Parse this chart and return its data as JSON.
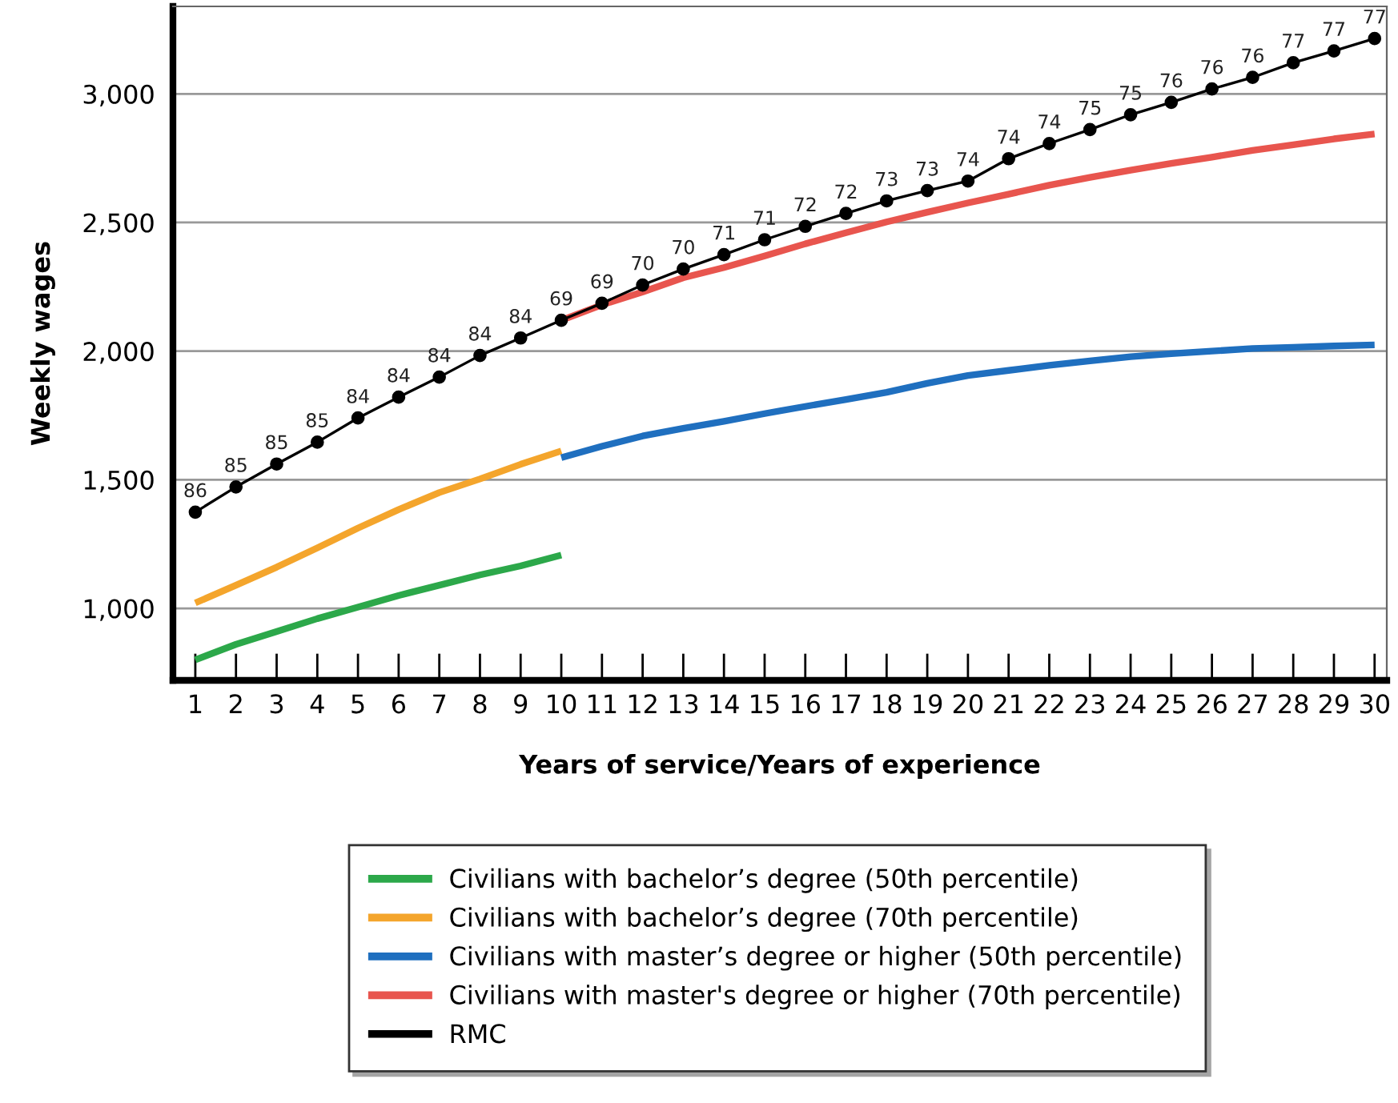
{
  "chart_data": {
    "type": "line",
    "xlabel": "Years of service/Years of experience",
    "ylabel": "Weekly wages",
    "categories": [
      "1",
      "2",
      "3",
      "4",
      "5",
      "6",
      "7",
      "8",
      "9",
      "10",
      "11",
      "12",
      "13",
      "14",
      "15",
      "16",
      "17",
      "18",
      "19",
      "20",
      "21",
      "22",
      "23",
      "24",
      "25",
      "26",
      "27",
      "28",
      "29",
      "30"
    ],
    "ylim": [
      720,
      3340
    ],
    "yticks": [
      {
        "value": 1000,
        "label": "1,000"
      },
      {
        "value": 1500,
        "label": "1,500"
      },
      {
        "value": 2000,
        "label": "2,000"
      },
      {
        "value": 2500,
        "label": "2,500"
      },
      {
        "value": 3000,
        "label": "3,000"
      }
    ],
    "grid": "y",
    "legend": "bottom",
    "series": [
      {
        "name": "Civilians with bachelor’s degree (50th percentile)",
        "color": "#2ca84a",
        "values": [
          800,
          860,
          910,
          960,
          1005,
          1050,
          1090,
          1130,
          1165,
          1207,
          null,
          null,
          null,
          null,
          null,
          null,
          null,
          null,
          null,
          null,
          null,
          null,
          null,
          null,
          null,
          null,
          null,
          null,
          null,
          null
        ]
      },
      {
        "name": "Civilians with bachelor’s degree (70th percentile)",
        "color": "#f4a52c",
        "values": [
          1021,
          1090,
          1160,
          1235,
          1312,
          1384,
          1450,
          1503,
          1560,
          1612,
          null,
          null,
          null,
          null,
          null,
          null,
          null,
          null,
          null,
          null,
          null,
          null,
          null,
          null,
          null,
          null,
          null,
          null,
          null,
          null
        ]
      },
      {
        "name": "Civilians with master’s degree or higher (50th percentile)",
        "color": "#1f6fbf",
        "values": [
          null,
          null,
          null,
          null,
          null,
          null,
          null,
          null,
          null,
          1586,
          1630,
          1670,
          1700,
          1727,
          1757,
          1785,
          1812,
          1840,
          1875,
          1905,
          1925,
          1945,
          1962,
          1978,
          1990,
          2000,
          2010,
          2015,
          2020,
          2024
        ]
      },
      {
        "name": "Civilians with master's degree or higher (70th percentile)",
        "color": "#e8554e",
        "values": [
          null,
          null,
          null,
          null,
          null,
          null,
          null,
          null,
          null,
          2120,
          2180,
          2230,
          2285,
          2325,
          2370,
          2417,
          2460,
          2502,
          2540,
          2576,
          2610,
          2645,
          2675,
          2703,
          2730,
          2754,
          2780,
          2802,
          2825,
          2844
        ]
      },
      {
        "name": "RMC",
        "color": "#000000",
        "marker": "circle",
        "values": [
          1374,
          1472,
          1561,
          1646,
          1740,
          1821,
          1899,
          1983,
          2051,
          2120,
          2186,
          2257,
          2319,
          2375,
          2433,
          2485,
          2535,
          2584,
          2624,
          2661,
          2748,
          2807,
          2861,
          2919,
          2967,
          3019,
          3064,
          3121,
          3167,
          3215
        ]
      }
    ],
    "annotations": [
      {
        "text": "86",
        "x": "1",
        "y": 1374
      },
      {
        "text": "85",
        "x": "2",
        "y": 1472
      },
      {
        "text": "85",
        "x": "3",
        "y": 1561
      },
      {
        "text": "85",
        "x": "4",
        "y": 1646
      },
      {
        "text": "84",
        "x": "5",
        "y": 1740
      },
      {
        "text": "84",
        "x": "6",
        "y": 1821
      },
      {
        "text": "84",
        "x": "7",
        "y": 1899
      },
      {
        "text": "84",
        "x": "8",
        "y": 1983
      },
      {
        "text": "84",
        "x": "9",
        "y": 2051
      },
      {
        "text": "69",
        "x": "10",
        "y": 2120
      },
      {
        "text": "69",
        "x": "11",
        "y": 2186
      },
      {
        "text": "70",
        "x": "12",
        "y": 2257
      },
      {
        "text": "70",
        "x": "13",
        "y": 2319
      },
      {
        "text": "71",
        "x": "14",
        "y": 2375
      },
      {
        "text": "71",
        "x": "15",
        "y": 2433
      },
      {
        "text": "72",
        "x": "16",
        "y": 2485
      },
      {
        "text": "72",
        "x": "17",
        "y": 2535
      },
      {
        "text": "73",
        "x": "18",
        "y": 2584
      },
      {
        "text": "73",
        "x": "19",
        "y": 2624
      },
      {
        "text": "74",
        "x": "20",
        "y": 2661
      },
      {
        "text": "74",
        "x": "21",
        "y": 2748
      },
      {
        "text": "74",
        "x": "22",
        "y": 2807
      },
      {
        "text": "75",
        "x": "23",
        "y": 2861
      },
      {
        "text": "75",
        "x": "24",
        "y": 2919
      },
      {
        "text": "76",
        "x": "25",
        "y": 2967
      },
      {
        "text": "76",
        "x": "26",
        "y": 3019
      },
      {
        "text": "76",
        "x": "27",
        "y": 3064
      },
      {
        "text": "77",
        "x": "28",
        "y": 3121
      },
      {
        "text": "77",
        "x": "29",
        "y": 3167
      },
      {
        "text": "77",
        "x": "30",
        "y": 3215
      }
    ]
  }
}
